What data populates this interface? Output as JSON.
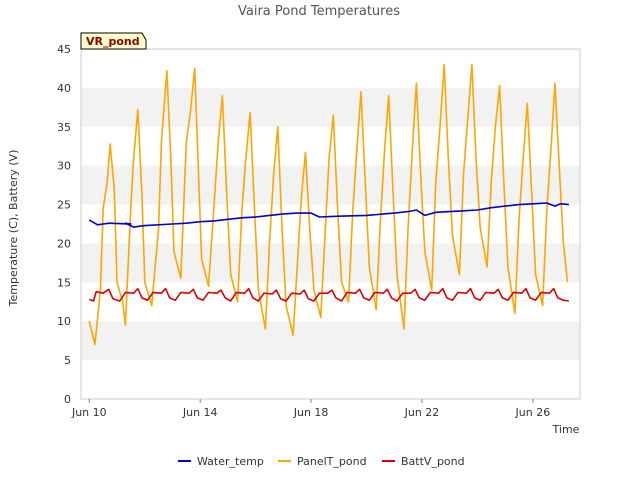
{
  "chart_data": {
    "type": "line",
    "title": "Vaira Pond Temperatures",
    "xlabel": "Time",
    "ylabel": "Temperature (C), Battery (V)",
    "badge": "VR_pond",
    "xlim": [
      -0.3,
      17.7
    ],
    "ylim": [
      0,
      45
    ],
    "yticks": [
      0,
      5,
      10,
      15,
      20,
      25,
      30,
      35,
      40,
      45
    ],
    "xticks": [
      {
        "day": 0,
        "label": "Jun 10"
      },
      {
        "day": 4,
        "label": "Jun 14"
      },
      {
        "day": 8,
        "label": "Jun 18"
      },
      {
        "day": 12,
        "label": "Jun 22"
      },
      {
        "day": 16,
        "label": "Jun 26"
      }
    ],
    "grid": "horizontal alternating bands",
    "legend_position": "bottom",
    "series": [
      {
        "name": "Water_temp",
        "color": "#0000cc",
        "points": [
          [
            0,
            23.0
          ],
          [
            0.3,
            22.4
          ],
          [
            0.7,
            22.6
          ],
          [
            1.5,
            22.5
          ],
          [
            1.3,
            22.6
          ],
          [
            1.6,
            22.1
          ],
          [
            2,
            22.3
          ],
          [
            3,
            22.5
          ],
          [
            3.5,
            22.6
          ],
          [
            4,
            22.8
          ],
          [
            4.5,
            22.9
          ],
          [
            5,
            23.1
          ],
          [
            5.5,
            23.3
          ],
          [
            6,
            23.4
          ],
          [
            6.5,
            23.6
          ],
          [
            7,
            23.8
          ],
          [
            7.5,
            23.9
          ],
          [
            8,
            23.9
          ],
          [
            8.3,
            23.4
          ],
          [
            9,
            23.5
          ],
          [
            10,
            23.6
          ],
          [
            11,
            23.9
          ],
          [
            11.5,
            24.1
          ],
          [
            11.8,
            24.3
          ],
          [
            12.1,
            23.6
          ],
          [
            12.5,
            24.0
          ],
          [
            13,
            24.1
          ],
          [
            13.5,
            24.2
          ],
          [
            14,
            24.3
          ],
          [
            14.5,
            24.6
          ],
          [
            15,
            24.8
          ],
          [
            15.5,
            25.0
          ],
          [
            16,
            25.1
          ],
          [
            16.5,
            25.2
          ],
          [
            16.8,
            24.8
          ],
          [
            17,
            25.1
          ],
          [
            17.3,
            25.0
          ]
        ]
      },
      {
        "name": "PanelT_pond",
        "color": "#ffa500",
        "points": [
          [
            0,
            10.0
          ],
          [
            0.2,
            7.0
          ],
          [
            0.4,
            14
          ],
          [
            0.5,
            24.5
          ],
          [
            0.65,
            28
          ],
          [
            0.75,
            32.8
          ],
          [
            0.9,
            27
          ],
          [
            1.0,
            15
          ],
          [
            1.2,
            12.5
          ],
          [
            1.3,
            9.5
          ],
          [
            1.5,
            25
          ],
          [
            1.6,
            31
          ],
          [
            1.75,
            37.2
          ],
          [
            1.9,
            26
          ],
          [
            2.0,
            15
          ],
          [
            2.25,
            12.0
          ],
          [
            2.5,
            22
          ],
          [
            2.6,
            33
          ],
          [
            2.8,
            42.2
          ],
          [
            2.95,
            30
          ],
          [
            3.05,
            19
          ],
          [
            3.3,
            15.5
          ],
          [
            3.5,
            33
          ],
          [
            3.65,
            37
          ],
          [
            3.8,
            42.5
          ],
          [
            3.95,
            28
          ],
          [
            4.05,
            18
          ],
          [
            4.3,
            14.5
          ],
          [
            4.5,
            25
          ],
          [
            4.65,
            33
          ],
          [
            4.8,
            39
          ],
          [
            4.95,
            27
          ],
          [
            5.1,
            16
          ],
          [
            5.35,
            12.5
          ],
          [
            5.5,
            24
          ],
          [
            5.65,
            31
          ],
          [
            5.8,
            36.8
          ],
          [
            5.95,
            25
          ],
          [
            6.1,
            14
          ],
          [
            6.35,
            9.0
          ],
          [
            6.5,
            20
          ],
          [
            6.65,
            29
          ],
          [
            6.8,
            35
          ],
          [
            6.95,
            22
          ],
          [
            7.1,
            12
          ],
          [
            7.35,
            8.2
          ],
          [
            7.5,
            17
          ],
          [
            7.65,
            26
          ],
          [
            7.8,
            31.7
          ],
          [
            7.95,
            22
          ],
          [
            8.1,
            14
          ],
          [
            8.35,
            10.5
          ],
          [
            8.5,
            21
          ],
          [
            8.65,
            31
          ],
          [
            8.8,
            36.5
          ],
          [
            8.95,
            25
          ],
          [
            9.1,
            15
          ],
          [
            9.35,
            12.5
          ],
          [
            9.5,
            24
          ],
          [
            9.65,
            32
          ],
          [
            9.8,
            39.5
          ],
          [
            9.95,
            28
          ],
          [
            10.1,
            17
          ],
          [
            10.35,
            11.5
          ],
          [
            10.5,
            23
          ],
          [
            10.65,
            32
          ],
          [
            10.8,
            39
          ],
          [
            10.95,
            27
          ],
          [
            11.1,
            16
          ],
          [
            11.35,
            9.0
          ],
          [
            11.5,
            22
          ],
          [
            11.65,
            32
          ],
          [
            11.8,
            40.6
          ],
          [
            11.95,
            29
          ],
          [
            12.1,
            19
          ],
          [
            12.35,
            14
          ],
          [
            12.5,
            28
          ],
          [
            12.65,
            35
          ],
          [
            12.8,
            43.0
          ],
          [
            12.95,
            31
          ],
          [
            13.1,
            21
          ],
          [
            13.35,
            16
          ],
          [
            13.5,
            29
          ],
          [
            13.65,
            36
          ],
          [
            13.8,
            43.0
          ],
          [
            13.95,
            31
          ],
          [
            14.1,
            22
          ],
          [
            14.35,
            17
          ],
          [
            14.5,
            28
          ],
          [
            14.65,
            35
          ],
          [
            14.8,
            40.3
          ],
          [
            14.95,
            28
          ],
          [
            15.1,
            17
          ],
          [
            15.35,
            11
          ],
          [
            15.5,
            23
          ],
          [
            15.65,
            31
          ],
          [
            15.8,
            38
          ],
          [
            15.95,
            27
          ],
          [
            16.1,
            16
          ],
          [
            16.35,
            12
          ],
          [
            16.5,
            24
          ],
          [
            16.65,
            32
          ],
          [
            16.8,
            40.6
          ],
          [
            16.95,
            30
          ],
          [
            17.1,
            20
          ],
          [
            17.25,
            15
          ]
        ]
      },
      {
        "name": "BattV_pond",
        "color": "#dd0000",
        "points": [
          [
            0,
            12.8
          ],
          [
            0.15,
            12.6
          ],
          [
            0.25,
            13.8
          ],
          [
            0.5,
            13.6
          ],
          [
            0.7,
            14.1
          ],
          [
            0.85,
            12.9
          ],
          [
            1.1,
            12.6
          ],
          [
            1.3,
            13.7
          ],
          [
            1.6,
            13.6
          ],
          [
            1.75,
            14.2
          ],
          [
            1.9,
            13.0
          ],
          [
            2.1,
            12.7
          ],
          [
            2.3,
            13.7
          ],
          [
            2.6,
            13.6
          ],
          [
            2.75,
            14.2
          ],
          [
            2.9,
            13.0
          ],
          [
            3.1,
            12.7
          ],
          [
            3.3,
            13.7
          ],
          [
            3.6,
            13.6
          ],
          [
            3.75,
            14.1
          ],
          [
            3.9,
            13.0
          ],
          [
            4.1,
            12.7
          ],
          [
            4.3,
            13.7
          ],
          [
            4.6,
            13.6
          ],
          [
            4.75,
            14.0
          ],
          [
            4.9,
            13.0
          ],
          [
            5.1,
            12.6
          ],
          [
            5.3,
            13.7
          ],
          [
            5.6,
            13.6
          ],
          [
            5.75,
            14.2
          ],
          [
            5.9,
            13.0
          ],
          [
            6.1,
            12.6
          ],
          [
            6.3,
            13.6
          ],
          [
            6.6,
            13.5
          ],
          [
            6.75,
            14.0
          ],
          [
            6.9,
            12.9
          ],
          [
            7.1,
            12.6
          ],
          [
            7.3,
            13.6
          ],
          [
            7.6,
            13.5
          ],
          [
            7.75,
            14.0
          ],
          [
            7.9,
            12.9
          ],
          [
            8.1,
            12.6
          ],
          [
            8.3,
            13.6
          ],
          [
            8.6,
            13.6
          ],
          [
            8.75,
            14.0
          ],
          [
            8.9,
            13.0
          ],
          [
            9.1,
            12.6
          ],
          [
            9.3,
            13.7
          ],
          [
            9.6,
            13.6
          ],
          [
            9.75,
            14.1
          ],
          [
            9.9,
            13.0
          ],
          [
            10.1,
            12.7
          ],
          [
            10.3,
            13.7
          ],
          [
            10.6,
            13.6
          ],
          [
            10.75,
            14.1
          ],
          [
            10.9,
            13.0
          ],
          [
            11.1,
            12.6
          ],
          [
            11.3,
            13.6
          ],
          [
            11.6,
            13.6
          ],
          [
            11.75,
            14.1
          ],
          [
            11.9,
            13.0
          ],
          [
            12.1,
            12.7
          ],
          [
            12.3,
            13.7
          ],
          [
            12.6,
            13.6
          ],
          [
            12.75,
            14.2
          ],
          [
            12.9,
            13.0
          ],
          [
            13.1,
            12.7
          ],
          [
            13.3,
            13.7
          ],
          [
            13.6,
            13.6
          ],
          [
            13.75,
            14.2
          ],
          [
            13.9,
            13.0
          ],
          [
            14.1,
            12.7
          ],
          [
            14.3,
            13.7
          ],
          [
            14.6,
            13.6
          ],
          [
            14.75,
            14.1
          ],
          [
            14.9,
            13.0
          ],
          [
            15.1,
            12.7
          ],
          [
            15.3,
            13.7
          ],
          [
            15.6,
            13.6
          ],
          [
            15.75,
            14.2
          ],
          [
            15.9,
            13.0
          ],
          [
            16.1,
            12.7
          ],
          [
            16.3,
            13.7
          ],
          [
            16.6,
            13.6
          ],
          [
            16.75,
            14.2
          ],
          [
            16.9,
            13.0
          ],
          [
            17.1,
            12.7
          ],
          [
            17.3,
            12.6
          ]
        ]
      }
    ]
  }
}
